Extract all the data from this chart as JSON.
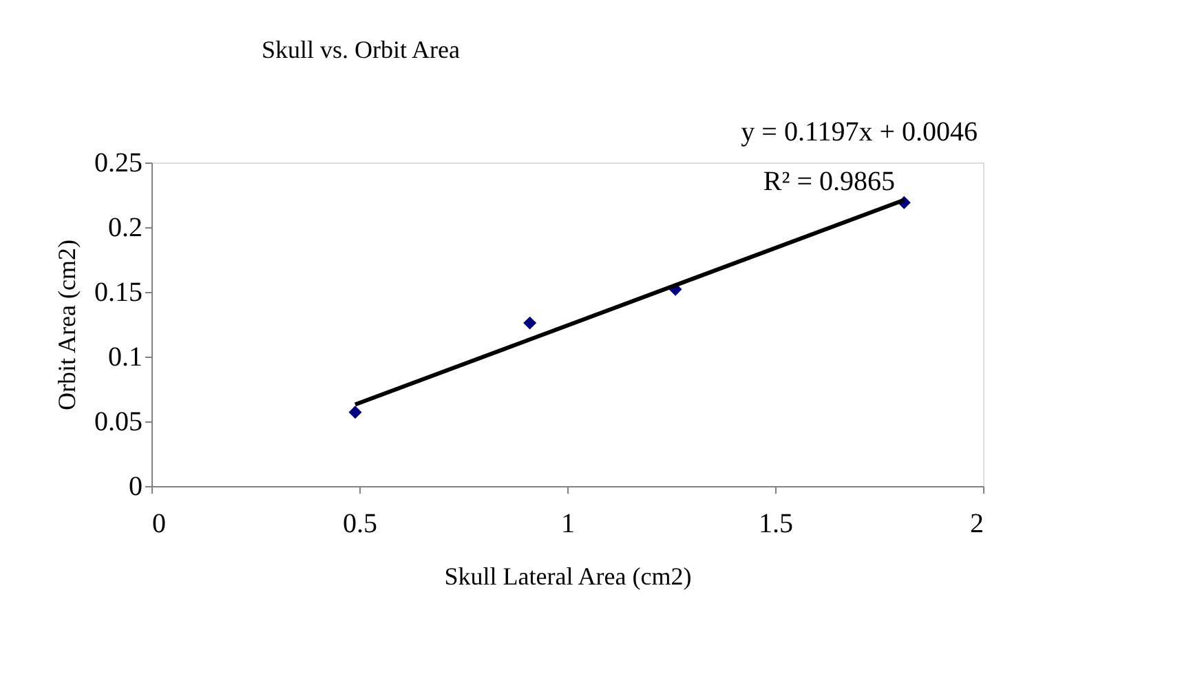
{
  "chart_data": {
    "type": "scatter",
    "title": "Skull vs. Orbit Area",
    "xlabel": "Skull Lateral Area (cm2)",
    "ylabel": "Orbit Area (cm2)",
    "annotations": [
      "y = 0.1197x + 0.0046",
      "R² = 0.9865"
    ],
    "series": [
      {
        "color": "#000080",
        "x": [
          0.49,
          0.91,
          1.26,
          1.81
        ],
        "values": [
          0.057,
          0.126,
          0.152,
          0.219
        ],
        "marker": "diamond"
      },
      {
        "type": "line",
        "color": "#000000",
        "x": [
          0.49,
          1.81
        ],
        "values": [
          0.063,
          0.221
        ],
        "line_style": "solid"
      }
    ],
    "xlim": [
      0,
      2
    ],
    "xticks": [
      0,
      0.5,
      1,
      1.5,
      2
    ],
    "ylim": [
      0,
      0.25
    ],
    "yticks": [
      0,
      0.05,
      0.1,
      0.15,
      0.2,
      0.25
    ],
    "grid": false
  }
}
